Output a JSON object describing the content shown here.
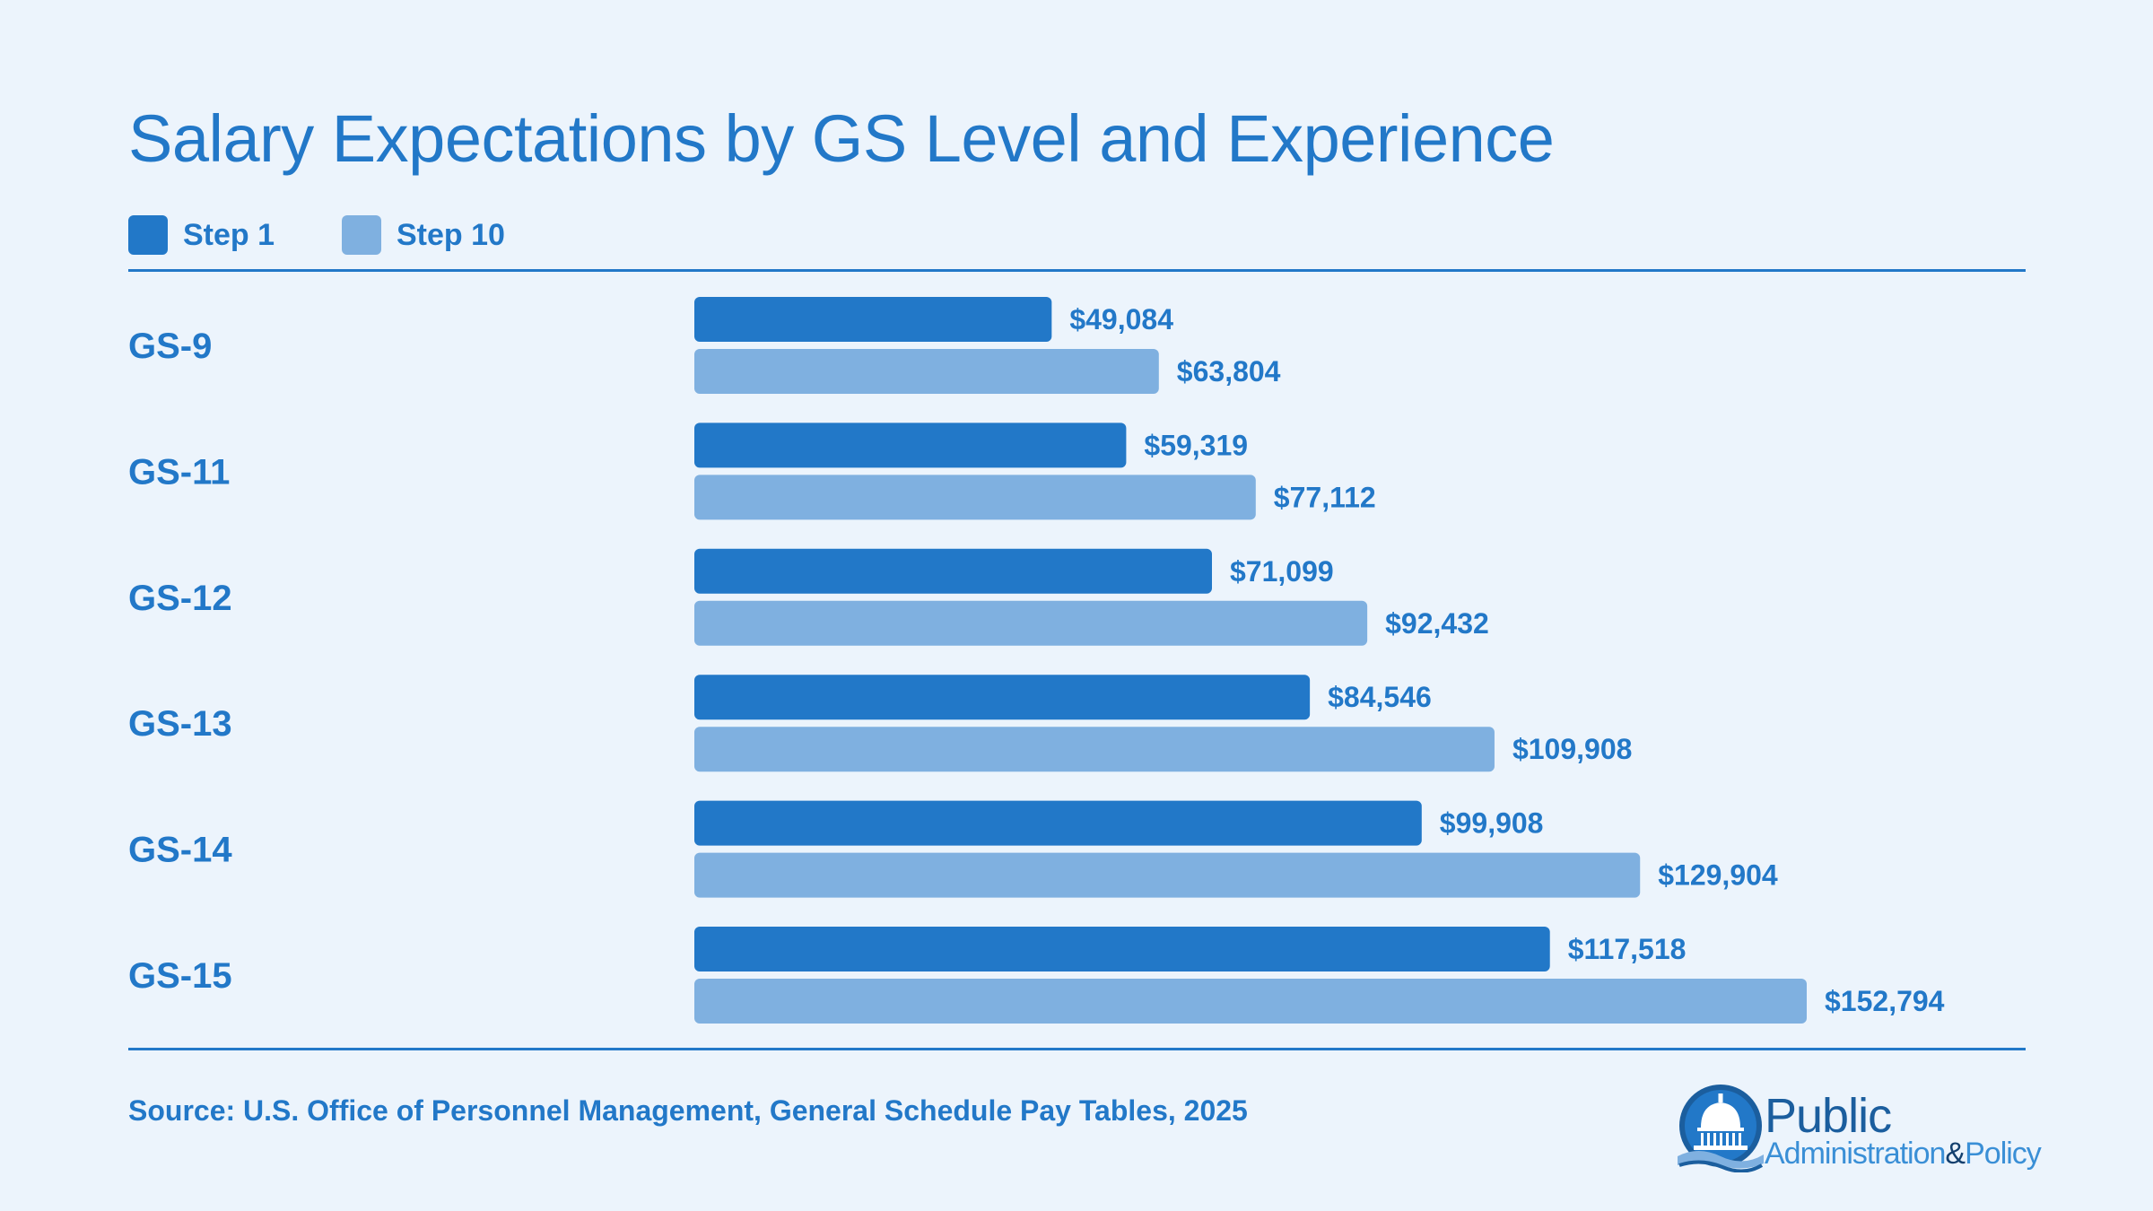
{
  "title": "Salary Expectations by GS Level and Experience",
  "legend": [
    {
      "label": "Step 1",
      "color": "#2278c8"
    },
    {
      "label": "Step 10",
      "color": "#7fb0e0"
    }
  ],
  "source": "Source: U.S. Office of Personnel Management, General Schedule Pay Tables, 2025",
  "logo": {
    "word1": "Public",
    "word2a": "Administration",
    "amp": "&",
    "word2b": "Policy",
    "icon": "capitol-dome-icon"
  },
  "colors": {
    "accent": "#2278c8",
    "light": "#7fb0e0",
    "background": "#ecf4fc"
  },
  "chart_data": {
    "type": "bar",
    "orientation": "horizontal",
    "categories": [
      "GS-9",
      "GS-11",
      "GS-12",
      "GS-13",
      "GS-14",
      "GS-15"
    ],
    "series": [
      {
        "name": "Step 1",
        "values": [
          49084,
          59319,
          71099,
          84546,
          99908,
          117518
        ],
        "labels": [
          "$49,084",
          "$59,319",
          "$71,099",
          "$84,546",
          "$99,908",
          "$117,518"
        ]
      },
      {
        "name": "Step 10",
        "values": [
          63804,
          77112,
          92432,
          109908,
          129904,
          152794
        ],
        "labels": [
          "$63,804",
          "$77,112",
          "$92,432",
          "$109,908",
          "$129,904",
          "$152,794"
        ]
      }
    ],
    "grid": false,
    "legend_position": "top-left"
  }
}
